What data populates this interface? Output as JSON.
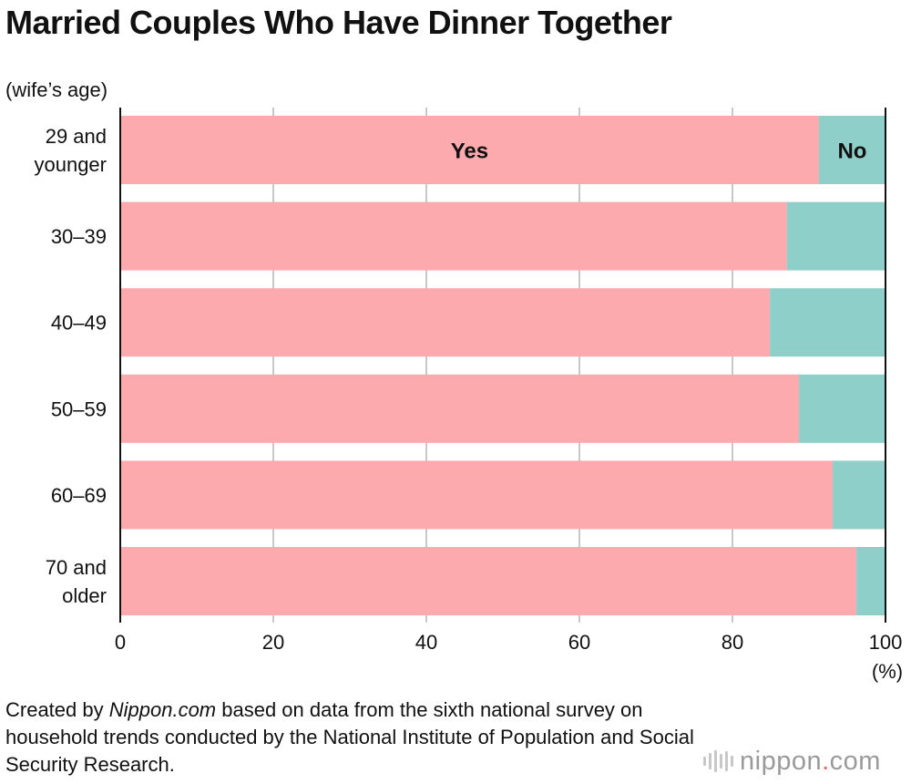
{
  "title": "Married Couples Who Have Dinner Together",
  "axis_note": "(wife’s age)",
  "unit_label": "(%)",
  "source": {
    "prefix": "Created by ",
    "site": "Nippon.com",
    "suffix": " based on data from the sixth national survey on household trends conducted by the National Institute of Population and Social Security Research."
  },
  "logo": {
    "name": "nippon",
    "dot": ".",
    "tld": "com",
    "mark_icon": "sound-wave-icon"
  },
  "colors": {
    "yes": "#fcaaae",
    "no": "#8ecfca",
    "grid": "#c8c8c8",
    "dot": "#e8636b"
  },
  "chart_data": {
    "type": "bar",
    "orientation": "horizontal",
    "stacked": true,
    "title": "Married Couples Who Have Dinner Together",
    "ylabel": "(wife’s age)",
    "xlabel": "(%)",
    "categories": [
      [
        "29 and",
        "younger"
      ],
      [
        "30–39"
      ],
      [
        "40–49"
      ],
      [
        "50–59"
      ],
      [
        "60–69"
      ],
      [
        "70 and",
        "older"
      ]
    ],
    "series": [
      {
        "name": "Yes",
        "color": "#fcaaae",
        "values": [
          91.3,
          87.1,
          84.9,
          88.7,
          93.1,
          96.2
        ]
      },
      {
        "name": "No",
        "color": "#8ecfca",
        "values": [
          8.7,
          12.9,
          15.1,
          11.3,
          6.9,
          3.8
        ]
      }
    ],
    "xlim": [
      0,
      100
    ],
    "xticks": [
      0,
      20,
      40,
      60,
      80,
      100
    ],
    "grid": true,
    "legend": "inline labels on first bar"
  }
}
